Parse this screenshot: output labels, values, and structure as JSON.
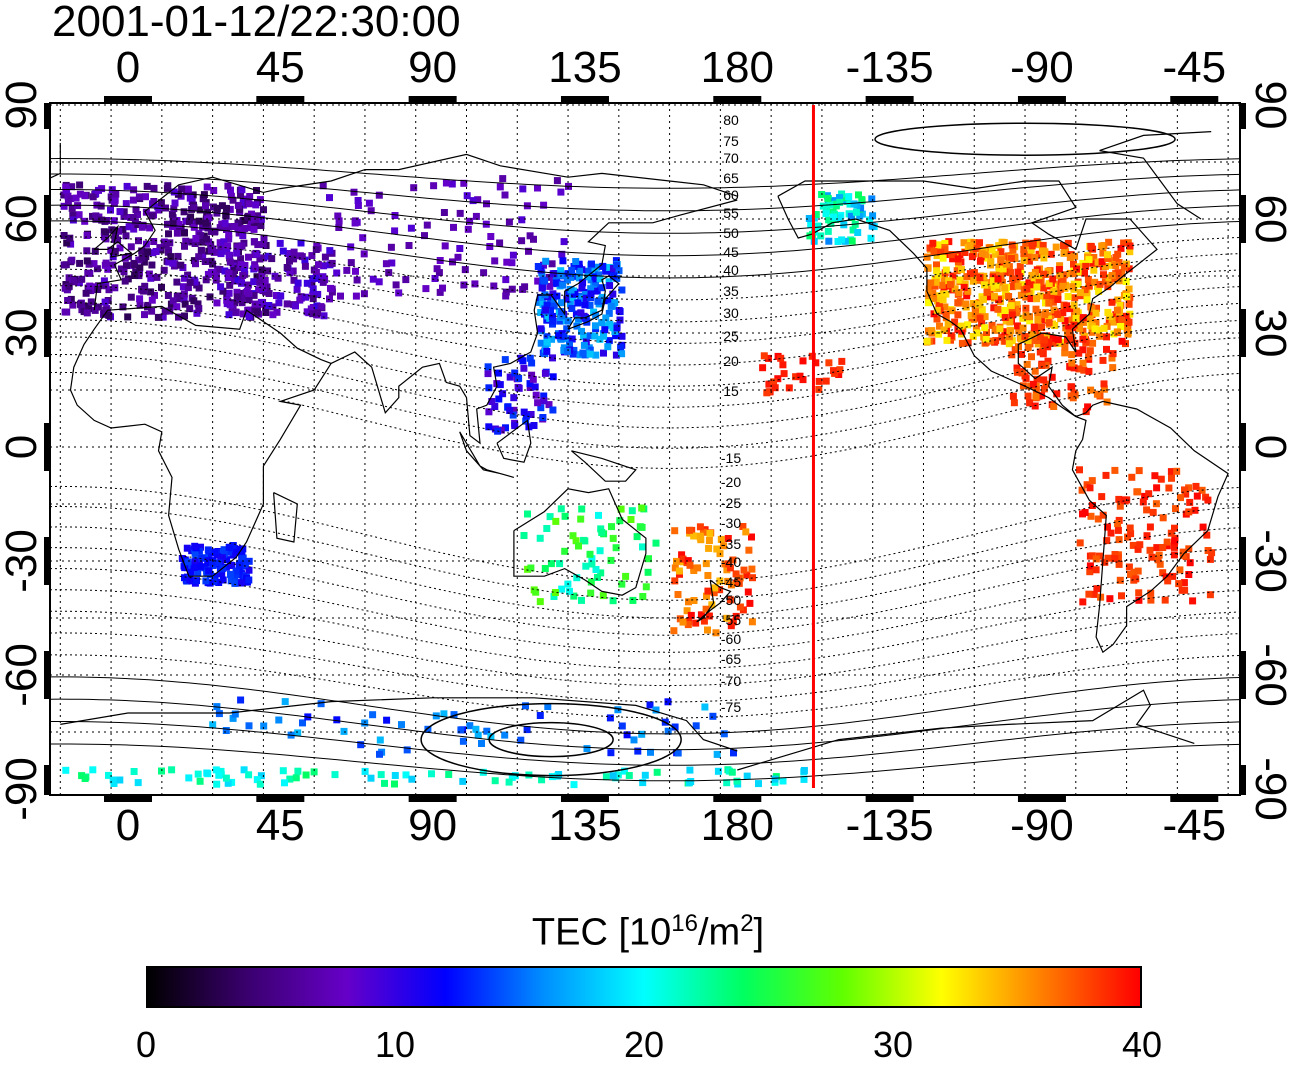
{
  "title": "2001-01-12/22:30:00",
  "lon_ticks": [
    "0",
    "45",
    "90",
    "135",
    "180",
    "-135",
    "-90",
    "-45"
  ],
  "lat_ticks": [
    "90",
    "60",
    "30",
    "0",
    "-30",
    "-60",
    "-90"
  ],
  "contour_labels": [
    "80",
    "75",
    "70",
    "65",
    "60",
    "55",
    "50",
    "45",
    "40",
    "35",
    "30",
    "25",
    "20",
    "15",
    "-15",
    "-20",
    "-25",
    "-30",
    "-35",
    "-40",
    "-45",
    "-50",
    "-55",
    "-60",
    "-65",
    "-70",
    "-75"
  ],
  "terminator_lon": -157.5,
  "colorbar": {
    "title": "TEC  [10",
    "title_exp": "16",
    "title_mid": "/m",
    "title_exp2": "2",
    "title_end": "]",
    "min": 0,
    "max": 40,
    "ticks": [
      "0",
      "10",
      "20",
      "30",
      "40"
    ],
    "colors": [
      "#000000",
      "#3a006e",
      "#6600c8",
      "#0000ff",
      "#0090ff",
      "#00ffff",
      "#00ff60",
      "#60ff00",
      "#ffff00",
      "#ff8000",
      "#ff0000"
    ]
  },
  "colors": {
    "terminator": "#ff0000",
    "frame": "#000000",
    "grid": "#000000"
  }
}
